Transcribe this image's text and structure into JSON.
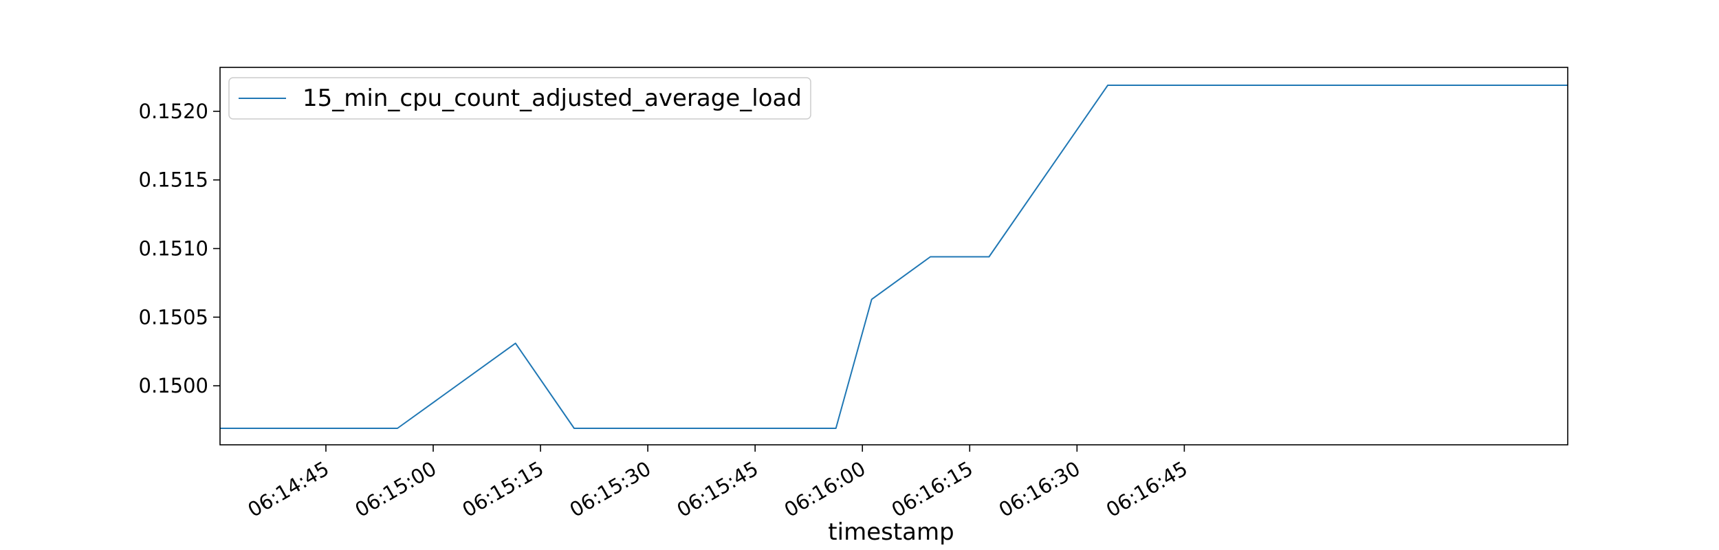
{
  "chart_data": {
    "type": "line",
    "xlabel": "timestamp",
    "ylabel": "",
    "title": "",
    "x_ticks": [
      "06:14:45",
      "06:15:00",
      "06:15:15",
      "06:15:30",
      "06:15:45",
      "06:16:00",
      "06:16:15",
      "06:16:30",
      "06:16:45"
    ],
    "y_ticks": [
      "0.1500",
      "0.1505",
      "0.1510",
      "0.1515",
      "0.1520"
    ],
    "xlim": [
      "06:14:30.2",
      "06:17:38.6"
    ],
    "ylim": [
      0.14957,
      0.15232
    ],
    "grid": false,
    "legend": "top-left",
    "series": [
      {
        "name": "15_min_cpu_count_adjusted_average_load",
        "color": "#1f77b4",
        "points": [
          [
            "06:14:30.2",
            0.14969
          ],
          [
            "06:14:55.0",
            0.14969
          ],
          [
            "06:15:11.5",
            0.15031
          ],
          [
            "06:15:19.7",
            0.14969
          ],
          [
            "06:15:56.3",
            0.14969
          ],
          [
            "06:16:01.3",
            0.15063
          ],
          [
            "06:16:09.5",
            0.15094
          ],
          [
            "06:16:17.7",
            0.15094
          ],
          [
            "06:16:34.3",
            0.15219
          ],
          [
            "06:17:38.6",
            0.15219
          ]
        ]
      }
    ]
  }
}
